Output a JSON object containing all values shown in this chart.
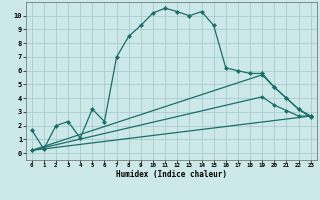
{
  "xlabel": "Humidex (Indice chaleur)",
  "background_color": "#cce8e8",
  "grid_color": "#aacccc",
  "line_color": "#1a6e6a",
  "xlim": [
    -0.5,
    23.5
  ],
  "ylim": [
    -0.5,
    11.0
  ],
  "xticks": [
    0,
    1,
    2,
    3,
    4,
    5,
    6,
    7,
    8,
    9,
    10,
    11,
    12,
    13,
    14,
    15,
    16,
    17,
    18,
    19,
    20,
    21,
    22,
    23
  ],
  "yticks": [
    0,
    1,
    2,
    3,
    4,
    5,
    6,
    7,
    8,
    9,
    10
  ],
  "line1_x": [
    0,
    1,
    2,
    3,
    4,
    5,
    6,
    7,
    8,
    9,
    10,
    11,
    12,
    13,
    14,
    15,
    16,
    17,
    18,
    19,
    20,
    21,
    22,
    23
  ],
  "line1_y": [
    1.7,
    0.3,
    2.0,
    2.3,
    1.1,
    3.2,
    2.3,
    7.0,
    8.5,
    9.3,
    10.2,
    10.55,
    10.3,
    10.0,
    10.3,
    9.3,
    6.2,
    6.0,
    5.8,
    5.8,
    4.8,
    4.0,
    3.2,
    2.6
  ],
  "line2_x": [
    0,
    23
  ],
  "line2_y": [
    0.2,
    2.7
  ],
  "line3_x": [
    0,
    19,
    20,
    21,
    22,
    23
  ],
  "line3_y": [
    0.2,
    5.7,
    4.8,
    4.0,
    3.2,
    2.7
  ],
  "line4_x": [
    0,
    19,
    20,
    21,
    22,
    23
  ],
  "line4_y": [
    0.2,
    4.1,
    3.5,
    3.1,
    2.7,
    2.7
  ]
}
